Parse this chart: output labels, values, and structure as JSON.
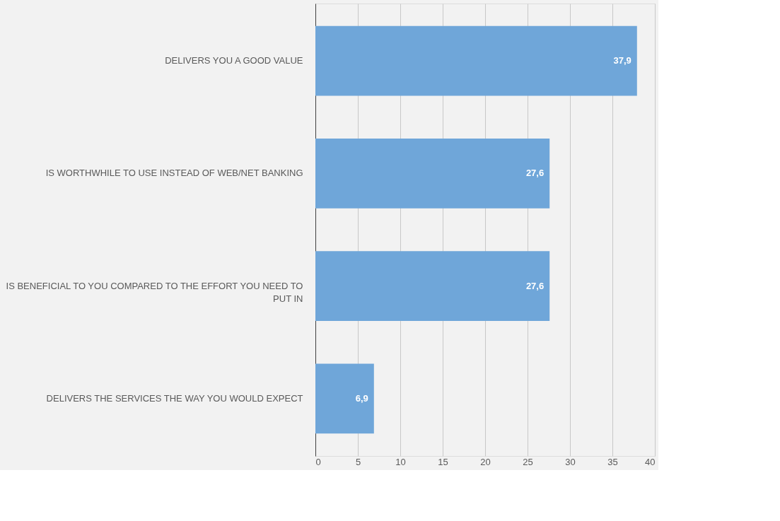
{
  "chart_data": {
    "type": "bar",
    "orientation": "horizontal",
    "categories": [
      "DELIVERS YOU A GOOD VALUE",
      "IS WORTHWHILE TO USE INSTEAD OF WEB/NET BANKING",
      "IS BENEFICIAL TO YOU COMPARED TO THE EFFORT YOU NEED TO PUT IN",
      "DELIVERS THE SERVICES THE WAY YOU WOULD EXPECT"
    ],
    "values": [
      37.9,
      27.6,
      27.6,
      6.9
    ],
    "value_labels": [
      "37,9",
      "27,6",
      "27,6",
      "6,9"
    ],
    "color": "#6fa6d9",
    "xlim": [
      0,
      40
    ],
    "xticks": [
      0,
      5,
      10,
      15,
      20,
      25,
      30,
      35,
      40
    ],
    "grid": "x"
  }
}
